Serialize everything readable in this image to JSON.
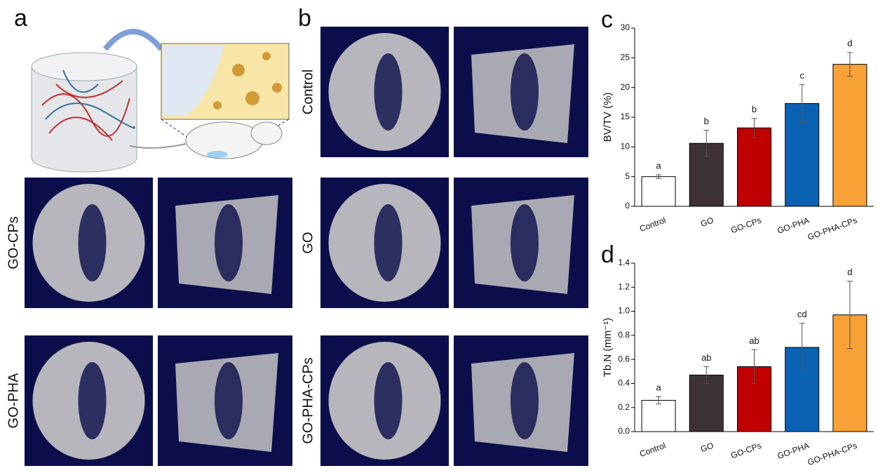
{
  "figure": {
    "panel_labels": [
      "a",
      "b"
    ],
    "ct_labels": [
      "GO-CPs",
      "GO-PHA",
      "Control",
      "GO",
      "GO-PHA-CPs"
    ]
  },
  "chart_data": [
    {
      "type": "bar",
      "panel": "c",
      "y_label": "BV/TV (%)",
      "categories": [
        "Control",
        "GO",
        "GO-CPs",
        "GO-PHA",
        "GO-PHA-CPs"
      ],
      "values": [
        5.0,
        10.6,
        13.2,
        17.3,
        23.9
      ],
      "errors": [
        0.3,
        2.2,
        1.6,
        3.2,
        2.0
      ],
      "letters": [
        "a",
        "b",
        "b",
        "c",
        "d"
      ],
      "colors": [
        "#ffffff",
        "#3d3236",
        "#c00000",
        "#0b62b3",
        "#f7a136"
      ],
      "ylim": [
        0,
        30
      ],
      "yticks": [
        0,
        5,
        10,
        15,
        20,
        25,
        30
      ]
    },
    {
      "type": "bar",
      "panel": "d",
      "y_label": "Tb.N (mm⁻¹)",
      "categories": [
        "Control",
        "GO",
        "GO-CPs",
        "GO-PHA",
        "GO-PHA-CPs"
      ],
      "values": [
        0.26,
        0.47,
        0.54,
        0.7,
        0.97
      ],
      "errors": [
        0.03,
        0.07,
        0.14,
        0.2,
        0.28
      ],
      "letters": [
        "a",
        "ab",
        "ab",
        "cd",
        "d"
      ],
      "colors": [
        "#ffffff",
        "#3d3236",
        "#c00000",
        "#0b62b3",
        "#f7a136"
      ],
      "ylim": [
        0,
        1.4
      ],
      "yticks": [
        {
          "value": 0,
          "label": "0.0"
        },
        0.2,
        0.4,
        0.6,
        0.8,
        {
          "value": 1,
          "label": "1.0"
        },
        1.2,
        1.4
      ]
    }
  ]
}
